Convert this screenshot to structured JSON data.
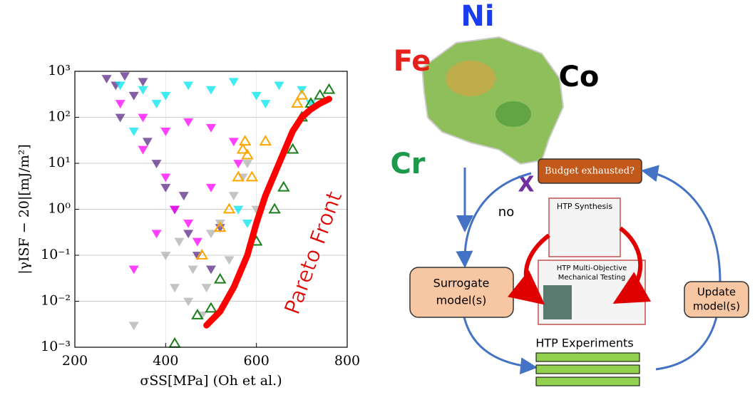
{
  "chart_data": {
    "type": "scatter",
    "xlabel": "σSS[MPa] (Oh et al.)",
    "ylabel": "|γISF − 20|[mJ/m²]",
    "annotation": "Pareto Front",
    "log_y": true,
    "grid": true,
    "xlim": [
      200,
      800
    ],
    "xticks": [
      200,
      400,
      600,
      800
    ],
    "ylim": [
      0.001,
      1000
    ],
    "yticks": [
      {
        "value": 0.001,
        "label": "10⁻³"
      },
      {
        "value": 0.01,
        "label": "10⁻²"
      },
      {
        "value": 0.1,
        "label": "10⁻¹"
      },
      {
        "value": 1,
        "label": "10⁰"
      },
      {
        "value": 10,
        "label": "10¹"
      },
      {
        "value": 100,
        "label": "10²"
      },
      {
        "value": 1000,
        "label": "10³"
      }
    ],
    "series": [
      {
        "marker": "triangle-down",
        "color": "#5b2a86",
        "x": [
          270,
          290,
          310,
          330,
          350,
          300,
          380,
          400,
          420,
          450,
          470,
          500,
          360,
          440,
          520
        ],
        "values": [
          700,
          500,
          800,
          300,
          600,
          100,
          10,
          3,
          1,
          0.3,
          0.1,
          0.05,
          30,
          2,
          0.4
        ]
      },
      {
        "marker": "triangle-down",
        "color": "#00e5ee",
        "x": [
          300,
          350,
          400,
          450,
          500,
          550,
          600,
          650,
          700,
          720,
          380,
          620,
          580,
          560,
          330
        ],
        "values": [
          500,
          400,
          300,
          500,
          400,
          600,
          300,
          500,
          400,
          200,
          200,
          200,
          0.5,
          1,
          50
        ]
      },
      {
        "marker": "triangle-down",
        "color": "#ff00ff",
        "x": [
          300,
          350,
          400,
          450,
          500,
          550,
          400,
          420,
          450,
          380,
          500,
          350,
          470,
          330,
          560
        ],
        "values": [
          200,
          100,
          50,
          80,
          60,
          30,
          5,
          1,
          0.5,
          0.3,
          3,
          20,
          0.2,
          0.05,
          10
        ]
      },
      {
        "marker": "triangle-down",
        "color": "#b0b0b0",
        "x": [
          330,
          400,
          420,
          450,
          480,
          500,
          550,
          580,
          460,
          520,
          600,
          430,
          490,
          540,
          570
        ],
        "values": [
          0.003,
          0.1,
          0.02,
          0.01,
          0.005,
          0.3,
          2,
          10,
          0.05,
          0.5,
          1,
          0.2,
          0.02,
          0.08,
          5
        ]
      },
      {
        "marker": "triangle-up",
        "color": "#ffa500",
        "x": [
          560,
          570,
          575,
          580,
          590,
          540,
          520,
          480,
          620,
          700,
          690
        ],
        "values": [
          5,
          20,
          30,
          15,
          5,
          1,
          0.4,
          0.1,
          30,
          300,
          200
        ]
      },
      {
        "marker": "triangle-up",
        "color": "#1a7f1a",
        "x": [
          420,
          470,
          500,
          520,
          600,
          640,
          660,
          680,
          700,
          720,
          740,
          760
        ],
        "values": [
          0.0012,
          0.005,
          0.007,
          0.03,
          0.2,
          1,
          3,
          20,
          100,
          200,
          300,
          400
        ]
      },
      {
        "marker": "line",
        "color": "#ff0000",
        "x": [
          490,
          520,
          550,
          580,
          600,
          620,
          650,
          680,
          700,
          720,
          740,
          760
        ],
        "values": [
          0.003,
          0.006,
          0.02,
          0.1,
          0.5,
          2,
          10,
          50,
          100,
          150,
          200,
          250
        ]
      }
    ]
  },
  "diagram": {
    "elements": [
      "Ni",
      "Fe",
      "Co",
      "Cr"
    ],
    "decision": "Budget exhausted?",
    "cross": "X",
    "no": "no",
    "synthesis": "HTP Synthesis",
    "testing": [
      "HTP Multi-Objective",
      "Mechanical Testing"
    ],
    "surrogate": [
      "Surrogate",
      "model(s)"
    ],
    "update": [
      "Update",
      "model(s)"
    ],
    "experiments": "HTP Experiments"
  }
}
